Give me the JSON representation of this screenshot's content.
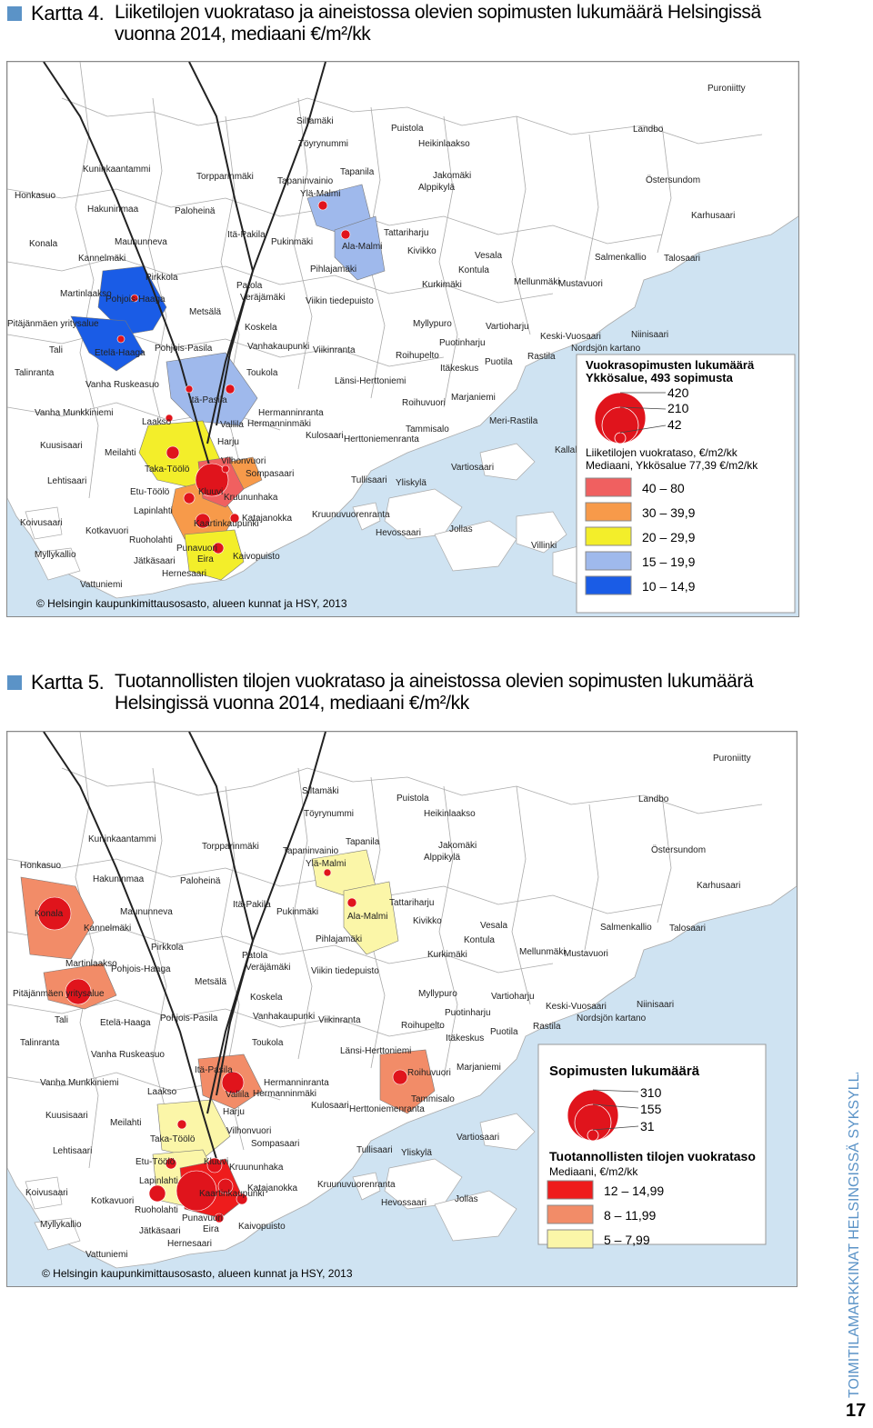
{
  "map1": {
    "label": "Kartta 4.",
    "title_line1": "Liiketilojen vuokrataso ja aineistossa olevien sopimusten lukumäärä Helsingissä",
    "title_line2": "vuonna 2014, mediaani €/m²/kk",
    "copyright": "© Helsingin kaupunkimittausosasto, alueen kunnat ja HSY, 2013",
    "legend": {
      "size_title": "Vuokrasopimusten lukumäärä",
      "size_subtitle": "Ykkösalue, 493 sopimusta",
      "size_values": [
        "420",
        "210",
        "42"
      ],
      "color_title": "Liiketilojen vuokrataso, €/m2/kk",
      "color_subtitle": "Mediaani, Ykkösalue 77,39 €/m2/kk",
      "classes": [
        {
          "label": "40  –  80",
          "color": "#f06060"
        },
        {
          "label": "30  –  39,9",
          "color": "#f79a4a"
        },
        {
          "label": "20  –  29,9",
          "color": "#f3ee2a"
        },
        {
          "label": "15  –  19,9",
          "color": "#9fb9ec"
        },
        {
          "label": "10  –  14,9",
          "color": "#1a5ce6"
        }
      ]
    },
    "places": [
      "Puroniitty",
      "Siltamäki",
      "Puistola",
      "Landbo",
      "Töyrynummi",
      "Heikinlaakso",
      "Kuninkaantammi",
      "Torpparinmäki",
      "Tapaninvainio",
      "Tapanila",
      "Jakomäki",
      "Alppikylä",
      "Östersundom",
      "Honkasuo",
      "Ylä-Malmi",
      "Hakuninmaa",
      "Paloheinä",
      "Karhusaari",
      "Itä-Pakila",
      "Tattariharju",
      "Konala",
      "Maununneva",
      "Pukinmäki",
      "Ala-Malmi",
      "Kivikko",
      "Kannelmäki",
      "Vesala",
      "Salmenkallio",
      "Talosaari",
      "Pihlajamäki",
      "Kontula",
      "Pirkkola",
      "Patola",
      "Kurkimäki",
      "Mellunmäki",
      "Mustavuori",
      "Malminkartano",
      "Martinlaakso",
      "Veräjämäki",
      "Viikin tiedepuisto",
      "Pohjois-Haaga",
      "Metsälä",
      "Myllypuro",
      "Vartioharju",
      "Pitäjänmäen yritysalue",
      "Koskela",
      "Keski-Vuosaari",
      "Niinisaari",
      "Puotinharju",
      "Nordsjön kartano",
      "Tali",
      "Etelä-Haaga",
      "Pohjois-Pasila",
      "Vanhakaupunki",
      "Viikinranta",
      "Roihupelto",
      "Rastila",
      "Puotila",
      "Talinranta",
      "Itäkeskus",
      "Toukola",
      "Länsi-Herttoniemi",
      "Vanha Ruskeasuo",
      "Marjaniemi",
      "Itä-Pasila",
      "Roihuvuori",
      "Hermanninranta",
      "Vanha Munkkiniemi",
      "Meri-Rastila",
      "Laakso",
      "Vallila",
      "Hermanninmäki",
      "Tammisalo",
      "Kulosaari",
      "Herttoniemenranta",
      "Kuusisaari",
      "Harju",
      "Kallahti",
      "Meilahti",
      "Vilhonvuori",
      "Vartiosaari",
      "Taka-Töölö",
      "Sompasaari",
      "Lehtisaari",
      "Tullisaari",
      "Yliskylä",
      "Etu-Töölö",
      "Kluuvi",
      "Kruununhaka",
      "Lapinlahti",
      "Kruunuvuorenranta",
      "Koivusaari",
      "Katajanokka",
      "Kaartinkaupunki",
      "Kotkavuori",
      "Jollas",
      "Hevossaari",
      "Ruoholahti",
      "Villinki",
      "Punavuori",
      "Myllykallio",
      "Jätkäsaari",
      "Eira",
      "Kaivopuisto",
      "Hernesaari",
      "Vattuniemi"
    ]
  },
  "map2": {
    "label": "Kartta 5.",
    "title_line1": "Tuotannollisten tilojen vuokrataso ja aineistossa olevien sopimusten lukumäärä",
    "title_line2": "Helsingissä vuonna 2014, mediaani €/m²/kk",
    "copyright": "© Helsingin kaupunkimittausosasto, alueen kunnat ja HSY, 2013",
    "legend": {
      "size_title": "Sopimusten lukumäärä",
      "size_values": [
        "310",
        "155",
        "31"
      ],
      "color_title": "Tuotannollisten tilojen vuokrataso",
      "color_subtitle": "Mediaani, €/m2/kk",
      "classes": [
        {
          "label": "12  –  14,99",
          "color": "#ee1c1c"
        },
        {
          "label": "8  –  11,99",
          "color": "#f28c68"
        },
        {
          "label": "5  –  7,99",
          "color": "#fbf6a8"
        }
      ]
    }
  },
  "side_text": "TOIMITILAMARKKINAT HELSINGISSÄ SYKSYLLÄ 2014",
  "page_number": "17",
  "colors": {
    "sea": "#cfe3f2",
    "land": "#ffffff",
    "border": "#999999",
    "rail": "#222222",
    "heading_square": "#5b93c7",
    "point": "#e0141c"
  }
}
